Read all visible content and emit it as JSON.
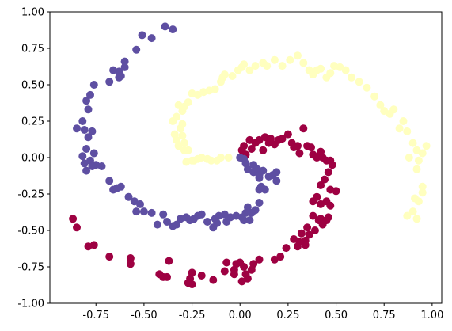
{
  "chart_data": {
    "type": "scatter",
    "title": "",
    "xlabel": "",
    "ylabel": "",
    "xlim": [
      -0.99,
      1.05
    ],
    "ylim": [
      -1.0,
      1.0
    ],
    "x_ticks": [
      "-0.75",
      "-0.50",
      "-0.25",
      "0.00",
      "0.25",
      "0.50",
      "0.75",
      "1.00"
    ],
    "y_ticks": [
      "-1.00",
      "-0.75",
      "-0.50",
      "-0.25",
      "0.00",
      "0.25",
      "0.50",
      "0.75",
      "1.00"
    ],
    "grid": false,
    "legend": "none",
    "series": [
      {
        "color": "#9e0142",
        "points": [
          [
            0.01,
            0.05
          ],
          [
            0.02,
            0.08
          ],
          [
            0.03,
            0.02
          ],
          [
            0.05,
            0.12
          ],
          [
            0.06,
            0.06
          ],
          [
            0.08,
            0.1
          ],
          [
            0.1,
            0.12
          ],
          [
            0.12,
            0.05
          ],
          [
            0.13,
            0.14
          ],
          [
            0.15,
            0.1
          ],
          [
            0.16,
            0.13
          ],
          [
            0.18,
            0.09
          ],
          [
            0.2,
            0.12
          ],
          [
            0.22,
            0.13
          ],
          [
            0.25,
            0.16
          ],
          [
            0.27,
            0.1
          ],
          [
            0.28,
            0.07
          ],
          [
            0.3,
            0.08
          ],
          [
            0.31,
            0.03
          ],
          [
            0.33,
            0.2
          ],
          [
            0.35,
            0.08
          ],
          [
            0.37,
            0.07
          ],
          [
            0.38,
            0.02
          ],
          [
            0.4,
            0.0
          ],
          [
            0.42,
            0.04
          ],
          [
            0.43,
            0.0
          ],
          [
            0.45,
            -0.02
          ],
          [
            0.47,
            -0.02
          ],
          [
            0.48,
            -0.05
          ],
          [
            0.46,
            -0.1
          ],
          [
            0.44,
            -0.15
          ],
          [
            0.42,
            -0.19
          ],
          [
            0.47,
            -0.22
          ],
          [
            0.5,
            -0.23
          ],
          [
            0.4,
            -0.27
          ],
          [
            0.38,
            -0.3
          ],
          [
            0.42,
            -0.32
          ],
          [
            0.45,
            -0.3
          ],
          [
            0.47,
            -0.33
          ],
          [
            0.38,
            -0.4
          ],
          [
            0.42,
            -0.42
          ],
          [
            0.46,
            -0.41
          ],
          [
            0.41,
            -0.43
          ],
          [
            0.45,
            -0.43
          ],
          [
            0.43,
            -0.46
          ],
          [
            0.39,
            -0.5
          ],
          [
            0.36,
            -0.53
          ],
          [
            0.32,
            -0.52
          ],
          [
            0.35,
            -0.48
          ],
          [
            0.34,
            -0.57
          ],
          [
            0.28,
            -0.56
          ],
          [
            0.34,
            -0.6
          ],
          [
            0.31,
            -0.58
          ],
          [
            0.3,
            -0.61
          ],
          [
            0.24,
            -0.62
          ],
          [
            0.21,
            -0.68
          ],
          [
            0.18,
            -0.7
          ],
          [
            0.1,
            -0.7
          ],
          [
            0.07,
            -0.73
          ],
          [
            0.0,
            -0.72
          ],
          [
            0.02,
            -0.75
          ],
          [
            -0.02,
            -0.73
          ],
          [
            -0.07,
            -0.72
          ],
          [
            -0.03,
            -0.77
          ],
          [
            0.06,
            -0.77
          ],
          [
            0.04,
            -0.83
          ],
          [
            0.03,
            -0.8
          ],
          [
            -0.03,
            -0.8
          ],
          [
            -0.08,
            -0.78
          ],
          [
            0.01,
            -0.85
          ],
          [
            -0.14,
            -0.84
          ],
          [
            -0.2,
            -0.81
          ],
          [
            -0.25,
            -0.79
          ],
          [
            -0.26,
            -0.83
          ],
          [
            -0.25,
            -0.87
          ],
          [
            -0.27,
            -0.86
          ],
          [
            -0.38,
            -0.82
          ],
          [
            -0.4,
            -0.82
          ],
          [
            -0.42,
            -0.8
          ],
          [
            -0.37,
            -0.71
          ],
          [
            -0.57,
            -0.69
          ],
          [
            -0.57,
            -0.73
          ],
          [
            -0.68,
            -0.68
          ],
          [
            -0.76,
            -0.6
          ],
          [
            -0.79,
            -0.61
          ],
          [
            -0.87,
            -0.42
          ],
          [
            -0.85,
            -0.48
          ]
        ]
      },
      {
        "color": "#5e4fa2",
        "points": [
          [
            0.0,
            0.0
          ],
          [
            0.02,
            -0.01
          ],
          [
            0.03,
            -0.04
          ],
          [
            0.04,
            -0.08
          ],
          [
            0.07,
            -0.1
          ],
          [
            0.07,
            -0.05
          ],
          [
            0.09,
            -0.08
          ],
          [
            0.1,
            -0.14
          ],
          [
            0.1,
            -0.12
          ],
          [
            0.12,
            -0.09
          ],
          [
            0.11,
            -0.2
          ],
          [
            0.13,
            -0.22
          ],
          [
            0.15,
            -0.13
          ],
          [
            0.17,
            -0.12
          ],
          [
            0.19,
            -0.16
          ],
          [
            0.19,
            -0.1
          ],
          [
            0.1,
            -0.22
          ],
          [
            0.1,
            -0.31
          ],
          [
            0.08,
            -0.36
          ],
          [
            0.06,
            -0.38
          ],
          [
            0.04,
            -0.34
          ],
          [
            0.03,
            -0.38
          ],
          [
            0.02,
            -0.43
          ],
          [
            0.05,
            -0.43
          ],
          [
            0.01,
            -0.41
          ],
          [
            -0.02,
            -0.4
          ],
          [
            -0.05,
            -0.41
          ],
          [
            -0.07,
            -0.44
          ],
          [
            -0.08,
            -0.39
          ],
          [
            -0.11,
            -0.4
          ],
          [
            -0.13,
            -0.42
          ],
          [
            -0.12,
            -0.45
          ],
          [
            -0.14,
            -0.48
          ],
          [
            -0.17,
            -0.44
          ],
          [
            -0.2,
            -0.39
          ],
          [
            -0.22,
            -0.4
          ],
          [
            -0.24,
            -0.42
          ],
          [
            -0.26,
            -0.43
          ],
          [
            -0.28,
            -0.41
          ],
          [
            -0.31,
            -0.42
          ],
          [
            -0.33,
            -0.46
          ],
          [
            -0.35,
            -0.47
          ],
          [
            -0.38,
            -0.44
          ],
          [
            -0.4,
            -0.39
          ],
          [
            -0.43,
            -0.46
          ],
          [
            -0.46,
            -0.38
          ],
          [
            -0.5,
            -0.37
          ],
          [
            -0.54,
            -0.37
          ],
          [
            -0.55,
            -0.3
          ],
          [
            -0.58,
            -0.27
          ],
          [
            -0.62,
            -0.2
          ],
          [
            -0.64,
            -0.21
          ],
          [
            -0.66,
            -0.22
          ],
          [
            -0.68,
            -0.16
          ],
          [
            -0.72,
            -0.06
          ],
          [
            -0.75,
            -0.05
          ],
          [
            -0.78,
            -0.02
          ],
          [
            -0.81,
            -0.04
          ],
          [
            -0.77,
            -0.06
          ],
          [
            -0.8,
            -0.09
          ],
          [
            -0.82,
            0.01
          ],
          [
            -0.76,
            0.03
          ],
          [
            -0.8,
            0.06
          ],
          [
            -0.79,
            0.14
          ],
          [
            -0.77,
            0.18
          ],
          [
            -0.81,
            0.19
          ],
          [
            -0.85,
            0.2
          ],
          [
            -0.82,
            0.25
          ],
          [
            -0.79,
            0.33
          ],
          [
            -0.8,
            0.39
          ],
          [
            -0.78,
            0.43
          ],
          [
            -0.76,
            0.5
          ],
          [
            -0.68,
            0.52
          ],
          [
            -0.63,
            0.59
          ],
          [
            -0.6,
            0.62
          ],
          [
            -0.66,
            0.6
          ],
          [
            -0.6,
            0.66
          ],
          [
            -0.62,
            0.56
          ],
          [
            -0.63,
            0.55
          ],
          [
            -0.54,
            0.74
          ],
          [
            -0.51,
            0.84
          ],
          [
            -0.46,
            0.82
          ],
          [
            -0.39,
            0.9
          ],
          [
            -0.35,
            0.88
          ],
          [
            -0.52,
            -0.32
          ]
        ]
      },
      {
        "color": "#ffffbf",
        "points": [
          [
            -0.06,
            0.0
          ],
          [
            -0.1,
            0.0
          ],
          [
            -0.12,
            -0.02
          ],
          [
            -0.15,
            -0.02
          ],
          [
            -0.17,
            -0.01
          ],
          [
            -0.2,
            0.0
          ],
          [
            -0.22,
            -0.01
          ],
          [
            -0.24,
            -0.02
          ],
          [
            -0.25,
            -0.02
          ],
          [
            -0.27,
            0.05
          ],
          [
            -0.29,
            0.05
          ],
          [
            -0.32,
            0.08
          ],
          [
            -0.29,
            0.1
          ],
          [
            -0.33,
            0.12
          ],
          [
            -0.3,
            0.15
          ],
          [
            -0.34,
            0.16
          ],
          [
            -0.31,
            0.2
          ],
          [
            -0.3,
            0.23
          ],
          [
            -0.35,
            0.25
          ],
          [
            -0.33,
            0.28
          ],
          [
            -0.3,
            0.32
          ],
          [
            -0.29,
            0.35
          ],
          [
            -0.32,
            0.36
          ],
          [
            -0.27,
            0.38
          ],
          [
            -0.25,
            0.44
          ],
          [
            -0.22,
            0.43
          ],
          [
            -0.19,
            0.45
          ],
          [
            -0.16,
            0.46
          ],
          [
            -0.13,
            0.47
          ],
          [
            -0.1,
            0.52
          ],
          [
            -0.09,
            0.55
          ],
          [
            -0.08,
            0.57
          ],
          [
            -0.04,
            0.56
          ],
          [
            -0.01,
            0.6
          ],
          [
            0.01,
            0.62
          ],
          [
            0.02,
            0.64
          ],
          [
            0.05,
            0.6
          ],
          [
            0.08,
            0.63
          ],
          [
            0.12,
            0.65
          ],
          [
            0.14,
            0.63
          ],
          [
            0.18,
            0.67
          ],
          [
            0.22,
            0.63
          ],
          [
            0.26,
            0.67
          ],
          [
            0.3,
            0.7
          ],
          [
            0.33,
            0.65
          ],
          [
            0.36,
            0.6
          ],
          [
            0.38,
            0.57
          ],
          [
            0.4,
            0.6
          ],
          [
            0.42,
            0.61
          ],
          [
            0.45,
            0.55
          ],
          [
            0.47,
            0.58
          ],
          [
            0.49,
            0.63
          ],
          [
            0.52,
            0.62
          ],
          [
            0.55,
            0.6
          ],
          [
            0.58,
            0.55
          ],
          [
            0.62,
            0.52
          ],
          [
            0.66,
            0.48
          ],
          [
            0.7,
            0.42
          ],
          [
            0.73,
            0.36
          ],
          [
            0.75,
            0.32
          ],
          [
            0.78,
            0.3
          ],
          [
            0.8,
            0.33
          ],
          [
            0.83,
            0.2
          ],
          [
            0.85,
            0.25
          ],
          [
            0.87,
            0.18
          ],
          [
            0.9,
            0.1
          ],
          [
            0.92,
            0.05
          ],
          [
            0.95,
            0.03
          ],
          [
            0.97,
            0.08
          ],
          [
            0.88,
            0.0
          ],
          [
            0.93,
            -0.02
          ],
          [
            0.92,
            -0.08
          ],
          [
            0.95,
            -0.2
          ],
          [
            0.95,
            -0.24
          ],
          [
            0.91,
            -0.28
          ],
          [
            0.93,
            -0.3
          ],
          [
            0.9,
            -0.37
          ],
          [
            0.87,
            -0.4
          ],
          [
            0.92,
            -0.42
          ],
          [
            -0.28,
            -0.03
          ]
        ]
      }
    ]
  }
}
